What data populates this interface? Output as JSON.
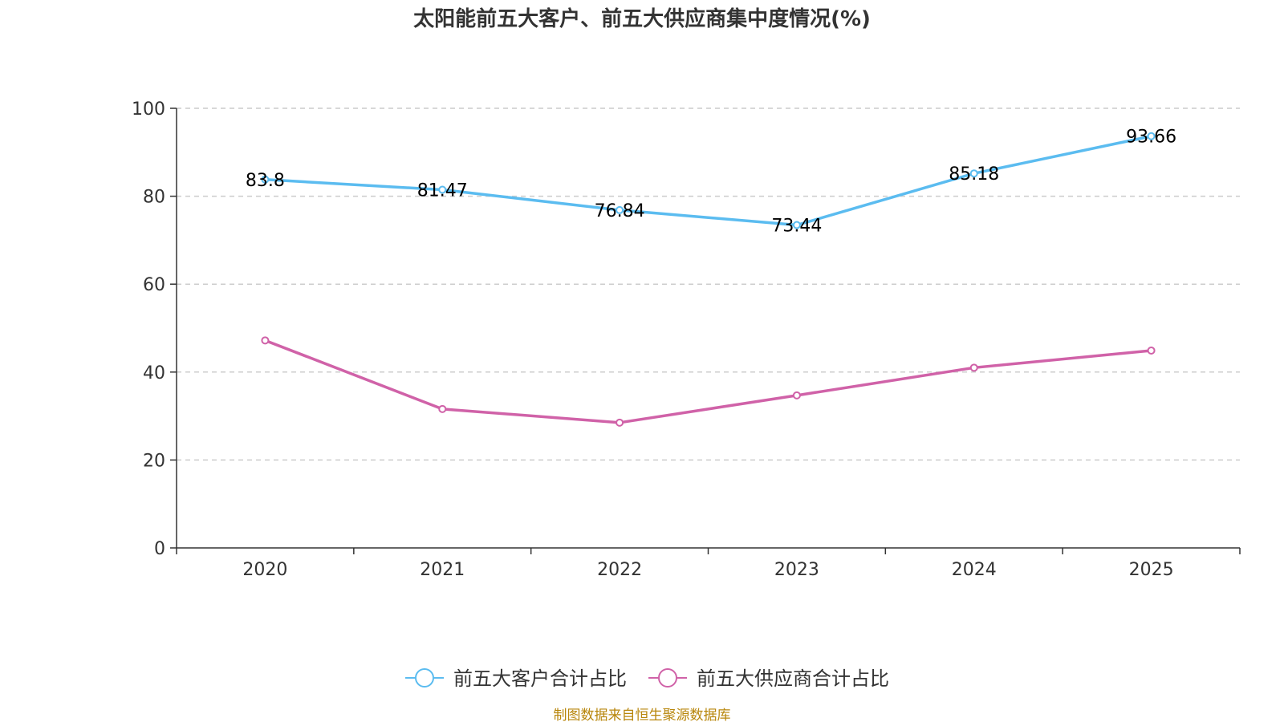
{
  "chart_data": {
    "type": "line",
    "title": "太阳能前五大客户、前五大供应商集中度情况(%)",
    "categories": [
      "2020",
      "2021",
      "2022",
      "2023",
      "2024",
      "2025"
    ],
    "ylim": [
      0,
      100
    ],
    "yticks": [
      0,
      20,
      40,
      60,
      80,
      100
    ],
    "grid": true,
    "legend_position": "bottom",
    "series": [
      {
        "name": "前五大客户合计占比",
        "color": "#5bbcf0",
        "values": [
          83.8,
          81.47,
          76.84,
          73.44,
          85.18,
          93.66
        ],
        "labels": [
          "83.8",
          "81.47",
          "76.84",
          "73.44",
          "85.18",
          "93.66"
        ],
        "show_labels": true
      },
      {
        "name": "前五大供应商合计占比",
        "color": "#d062a8",
        "values": [
          47.2,
          31.6,
          28.5,
          34.7,
          41.0,
          44.9
        ],
        "show_labels": false
      }
    ],
    "source": "制图数据来自恒生聚源数据库"
  }
}
